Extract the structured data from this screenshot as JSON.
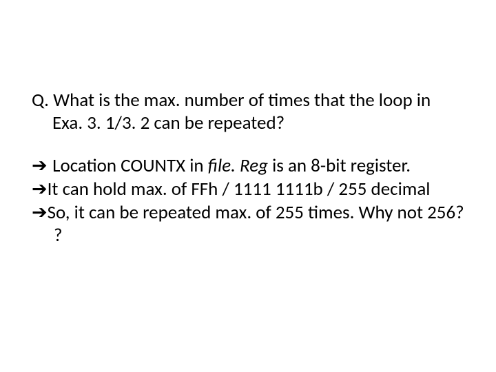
{
  "slide": {
    "text_color": "#000000",
    "background_color": "#ffffff",
    "font_size_pt": 20,
    "question": {
      "label": "Q. What is the max. number of times that the loop in Exa. 3. 1/3. 2 can be repeated?"
    },
    "lines": [
      {
        "prefix": "➔ ",
        "before_italic": "Location COUNTX in ",
        "italic": "file. Reg",
        "after_italic": " is an 8-bit register."
      },
      {
        "prefix": "➔",
        "text": "It can hold max. of FFh / 1111 1111b / 255 decimal"
      },
      {
        "prefix": "➔",
        "text": "So, it can be repeated max. of 255 times. Why not 256? ?"
      }
    ]
  }
}
